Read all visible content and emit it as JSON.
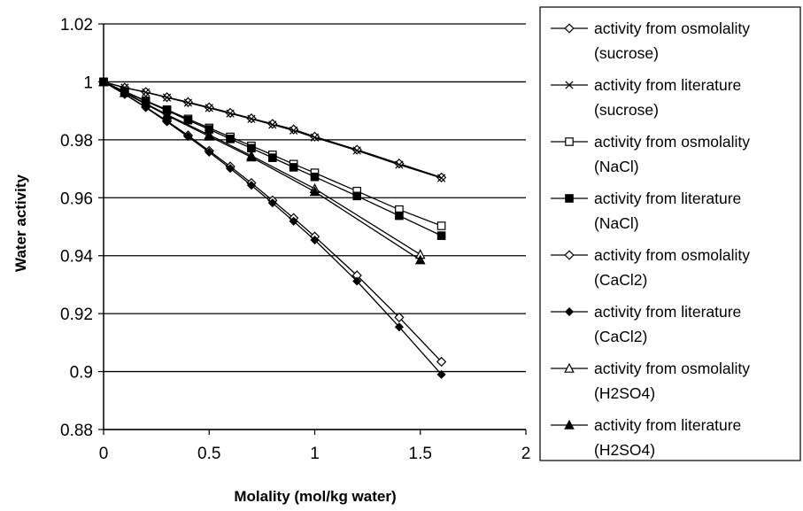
{
  "chart_data": {
    "type": "line",
    "xlabel": "Molality (mol/kg water)",
    "ylabel": "Water activity",
    "xlim": [
      0,
      2
    ],
    "ylim": [
      0.88,
      1.02
    ],
    "x_ticks": [
      "0",
      "0.5",
      "1",
      "1.5",
      "2"
    ],
    "y_ticks": [
      "0.88",
      "0.9",
      "0.92",
      "0.94",
      "0.96",
      "0.98",
      "1",
      "1.02"
    ],
    "grid": "horizontal major gridlines",
    "legend_position": "right",
    "series": [
      {
        "name": "activity from osmolality (sucrose)",
        "marker": "open-diamond",
        "points": [
          [
            0,
            1.0
          ],
          [
            0.1,
            0.998
          ],
          [
            0.2,
            0.9965
          ],
          [
            0.3,
            0.9947
          ],
          [
            0.4,
            0.993
          ],
          [
            0.5,
            0.9912
          ],
          [
            0.6,
            0.9893
          ],
          [
            0.7,
            0.9874
          ],
          [
            0.8,
            0.9855
          ],
          [
            0.9,
            0.9836
          ],
          [
            1.0,
            0.9811
          ],
          [
            1.2,
            0.9766
          ],
          [
            1.4,
            0.9718
          ],
          [
            1.6,
            0.967
          ]
        ]
      },
      {
        "name": "activity from literature (sucrose)",
        "marker": "x",
        "points": [
          [
            0,
            1.0
          ],
          [
            0.1,
            0.998
          ],
          [
            0.2,
            0.9964
          ],
          [
            0.3,
            0.9946
          ],
          [
            0.4,
            0.9928
          ],
          [
            0.5,
            0.991
          ],
          [
            0.6,
            0.9891
          ],
          [
            0.7,
            0.9872
          ],
          [
            0.8,
            0.9852
          ],
          [
            0.9,
            0.9832
          ],
          [
            1.0,
            0.9808
          ],
          [
            1.2,
            0.9763
          ],
          [
            1.4,
            0.9714
          ],
          [
            1.6,
            0.9668
          ]
        ]
      },
      {
        "name": "activity from osmolality (NaCl)",
        "marker": "open-square",
        "points": [
          [
            0,
            1.0
          ],
          [
            0.1,
            0.9967
          ],
          [
            0.2,
            0.9935
          ],
          [
            0.3,
            0.9904
          ],
          [
            0.4,
            0.9872
          ],
          [
            0.5,
            0.9841
          ],
          [
            0.6,
            0.981
          ],
          [
            0.7,
            0.9779
          ],
          [
            0.8,
            0.9748
          ],
          [
            0.9,
            0.9716
          ],
          [
            1.0,
            0.9686
          ],
          [
            1.2,
            0.9623
          ],
          [
            1.4,
            0.9559
          ],
          [
            1.6,
            0.9503
          ]
        ]
      },
      {
        "name": "activity from literature (NaCl)",
        "marker": "filled-square",
        "points": [
          [
            0,
            1.0
          ],
          [
            0.1,
            0.9966
          ],
          [
            0.2,
            0.9933
          ],
          [
            0.3,
            0.9901
          ],
          [
            0.4,
            0.9868
          ],
          [
            0.5,
            0.9836
          ],
          [
            0.6,
            0.9803
          ],
          [
            0.7,
            0.9771
          ],
          [
            0.8,
            0.9738
          ],
          [
            0.9,
            0.9705
          ],
          [
            1.0,
            0.9672
          ],
          [
            1.2,
            0.9606
          ],
          [
            1.4,
            0.9538
          ],
          [
            1.6,
            0.9469
          ]
        ]
      },
      {
        "name": "activity from osmolality (CaCl2)",
        "marker": "open-diamond",
        "points": [
          [
            0,
            1.0
          ],
          [
            0.1,
            0.9958
          ],
          [
            0.2,
            0.9913
          ],
          [
            0.3,
            0.9865
          ],
          [
            0.4,
            0.9815
          ],
          [
            0.5,
            0.9762
          ],
          [
            0.6,
            0.9708
          ],
          [
            0.7,
            0.9651
          ],
          [
            0.8,
            0.9591
          ],
          [
            0.9,
            0.953
          ],
          [
            1.0,
            0.9466
          ],
          [
            1.2,
            0.9332
          ],
          [
            1.4,
            0.9187
          ],
          [
            1.6,
            0.9034
          ]
        ]
      },
      {
        "name": "activity from literature (CaCl2)",
        "marker": "filled-diamond",
        "points": [
          [
            0,
            1.0
          ],
          [
            0.1,
            0.9957
          ],
          [
            0.2,
            0.9911
          ],
          [
            0.3,
            0.9862
          ],
          [
            0.4,
            0.9811
          ],
          [
            0.5,
            0.9757
          ],
          [
            0.6,
            0.9701
          ],
          [
            0.7,
            0.9643
          ],
          [
            0.8,
            0.9582
          ],
          [
            0.9,
            0.9519
          ],
          [
            1.0,
            0.9454
          ],
          [
            1.2,
            0.9312
          ],
          [
            1.4,
            0.9154
          ],
          [
            1.6,
            0.899
          ]
        ]
      },
      {
        "name": "activity from osmolality (H2SO4)",
        "marker": "open-triangle",
        "points": [
          [
            0,
            1.0
          ],
          [
            0.1,
            0.9963
          ],
          [
            0.3,
            0.9887
          ],
          [
            0.5,
            0.9817
          ],
          [
            0.7,
            0.9745
          ],
          [
            1.0,
            0.9631
          ],
          [
            1.5,
            0.9404
          ]
        ]
      },
      {
        "name": "activity from literature (H2SO4)",
        "marker": "filled-triangle",
        "points": [
          [
            0,
            1.0
          ],
          [
            0.1,
            0.9962
          ],
          [
            0.3,
            0.9884
          ],
          [
            0.5,
            0.9812
          ],
          [
            0.7,
            0.974
          ],
          [
            1.0,
            0.9621
          ],
          [
            1.5,
            0.9385
          ]
        ]
      }
    ]
  },
  "legend": {
    "items": [
      {
        "line1": "activity from osmolality",
        "line2": "(sucrose)",
        "marker": "open-diamond"
      },
      {
        "line1": "activity from literature",
        "line2": "(sucrose)",
        "marker": "x"
      },
      {
        "line1": "activity from osmolality",
        "line2": "(NaCl)",
        "marker": "open-square"
      },
      {
        "line1": "activity from literature",
        "line2": "(NaCl)",
        "marker": "filled-square"
      },
      {
        "line1": "activity from osmolality",
        "line2": "(CaCl2)",
        "marker": "open-diamond"
      },
      {
        "line1": "activity from literature",
        "line2": "(CaCl2)",
        "marker": "filled-diamond"
      },
      {
        "line1": "activity from osmolality",
        "line2": "(H2SO4)",
        "marker": "open-triangle"
      },
      {
        "line1": "activity from literature",
        "line2": "(H2SO4)",
        "marker": "filled-triangle"
      }
    ]
  }
}
